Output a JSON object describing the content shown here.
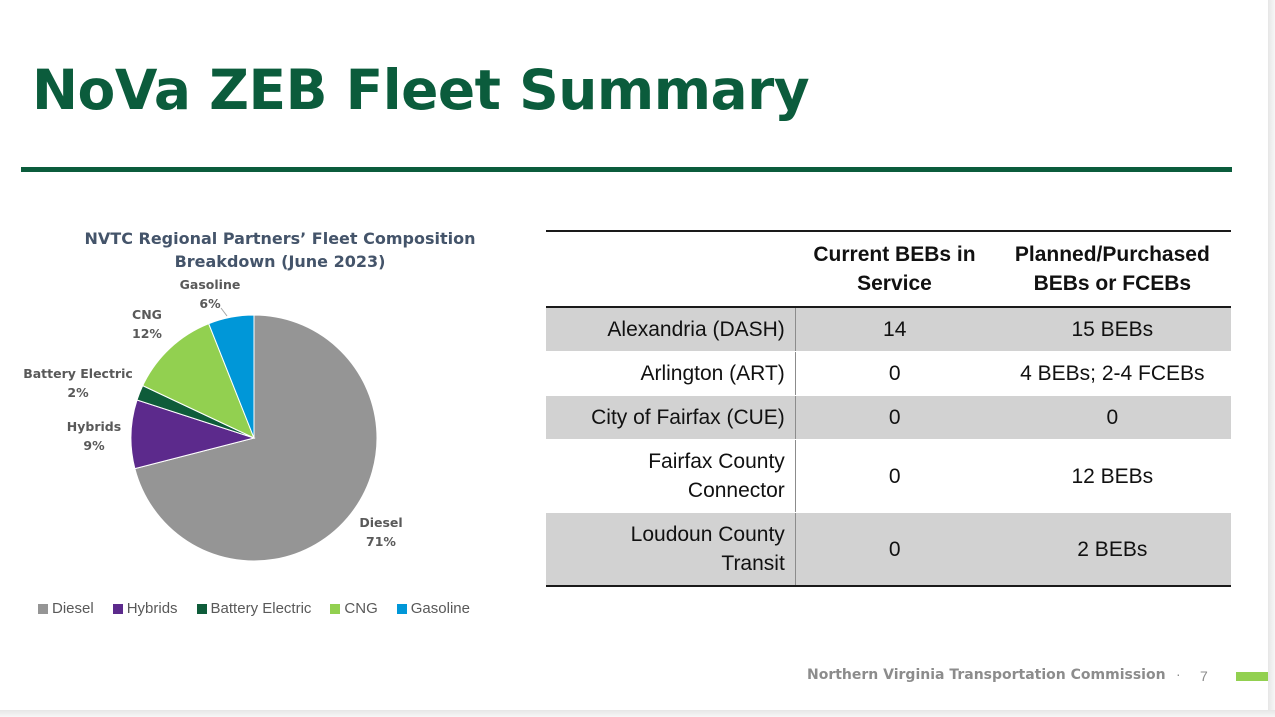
{
  "slide": {
    "title": "NoVa ZEB Fleet Summary",
    "footer": "Northern Virginia Transportation Commission",
    "footer_separator": "·",
    "page_number": "7",
    "colors": {
      "title": "#0b5c3c",
      "rule": "#0b5c3c",
      "footer_accent": "#92d050",
      "table_shade": "#d2d2d2"
    }
  },
  "chart_data": {
    "type": "pie",
    "title": "NVTC Regional Partners’ Fleet Composition Breakdown (June 2023)",
    "slices": [
      {
        "name": "Diesel",
        "value": 71,
        "label": "71%",
        "color": "#959595"
      },
      {
        "name": "Hybrids",
        "value": 9,
        "label": "9%",
        "color": "#5c2a8c"
      },
      {
        "name": "Battery Electric",
        "value": 2,
        "label": "2%",
        "color": "#0e5c3a"
      },
      {
        "name": "CNG",
        "value": 12,
        "label": "12%",
        "color": "#92d050"
      },
      {
        "name": "Gasoline",
        "value": 6,
        "label": "6%",
        "color": "#0097d8"
      }
    ],
    "legend_position": "bottom"
  },
  "table": {
    "headers": [
      "",
      "Current BEBs in Service",
      "Planned/Purchased BEBs or FCEBs"
    ],
    "rows": [
      {
        "agency": "Alexandria (DASH)",
        "current": "14",
        "planned": "15 BEBs"
      },
      {
        "agency": "Arlington (ART)",
        "current": "0",
        "planned": "4 BEBs; 2-4 FCEBs"
      },
      {
        "agency": "City of Fairfax (CUE)",
        "current": "0",
        "planned": "0"
      },
      {
        "agency": "Fairfax County Connector",
        "current": "0",
        "planned": "12 BEBs"
      },
      {
        "agency": "Loudoun County Transit",
        "current": "0",
        "planned": "2 BEBs"
      }
    ]
  }
}
